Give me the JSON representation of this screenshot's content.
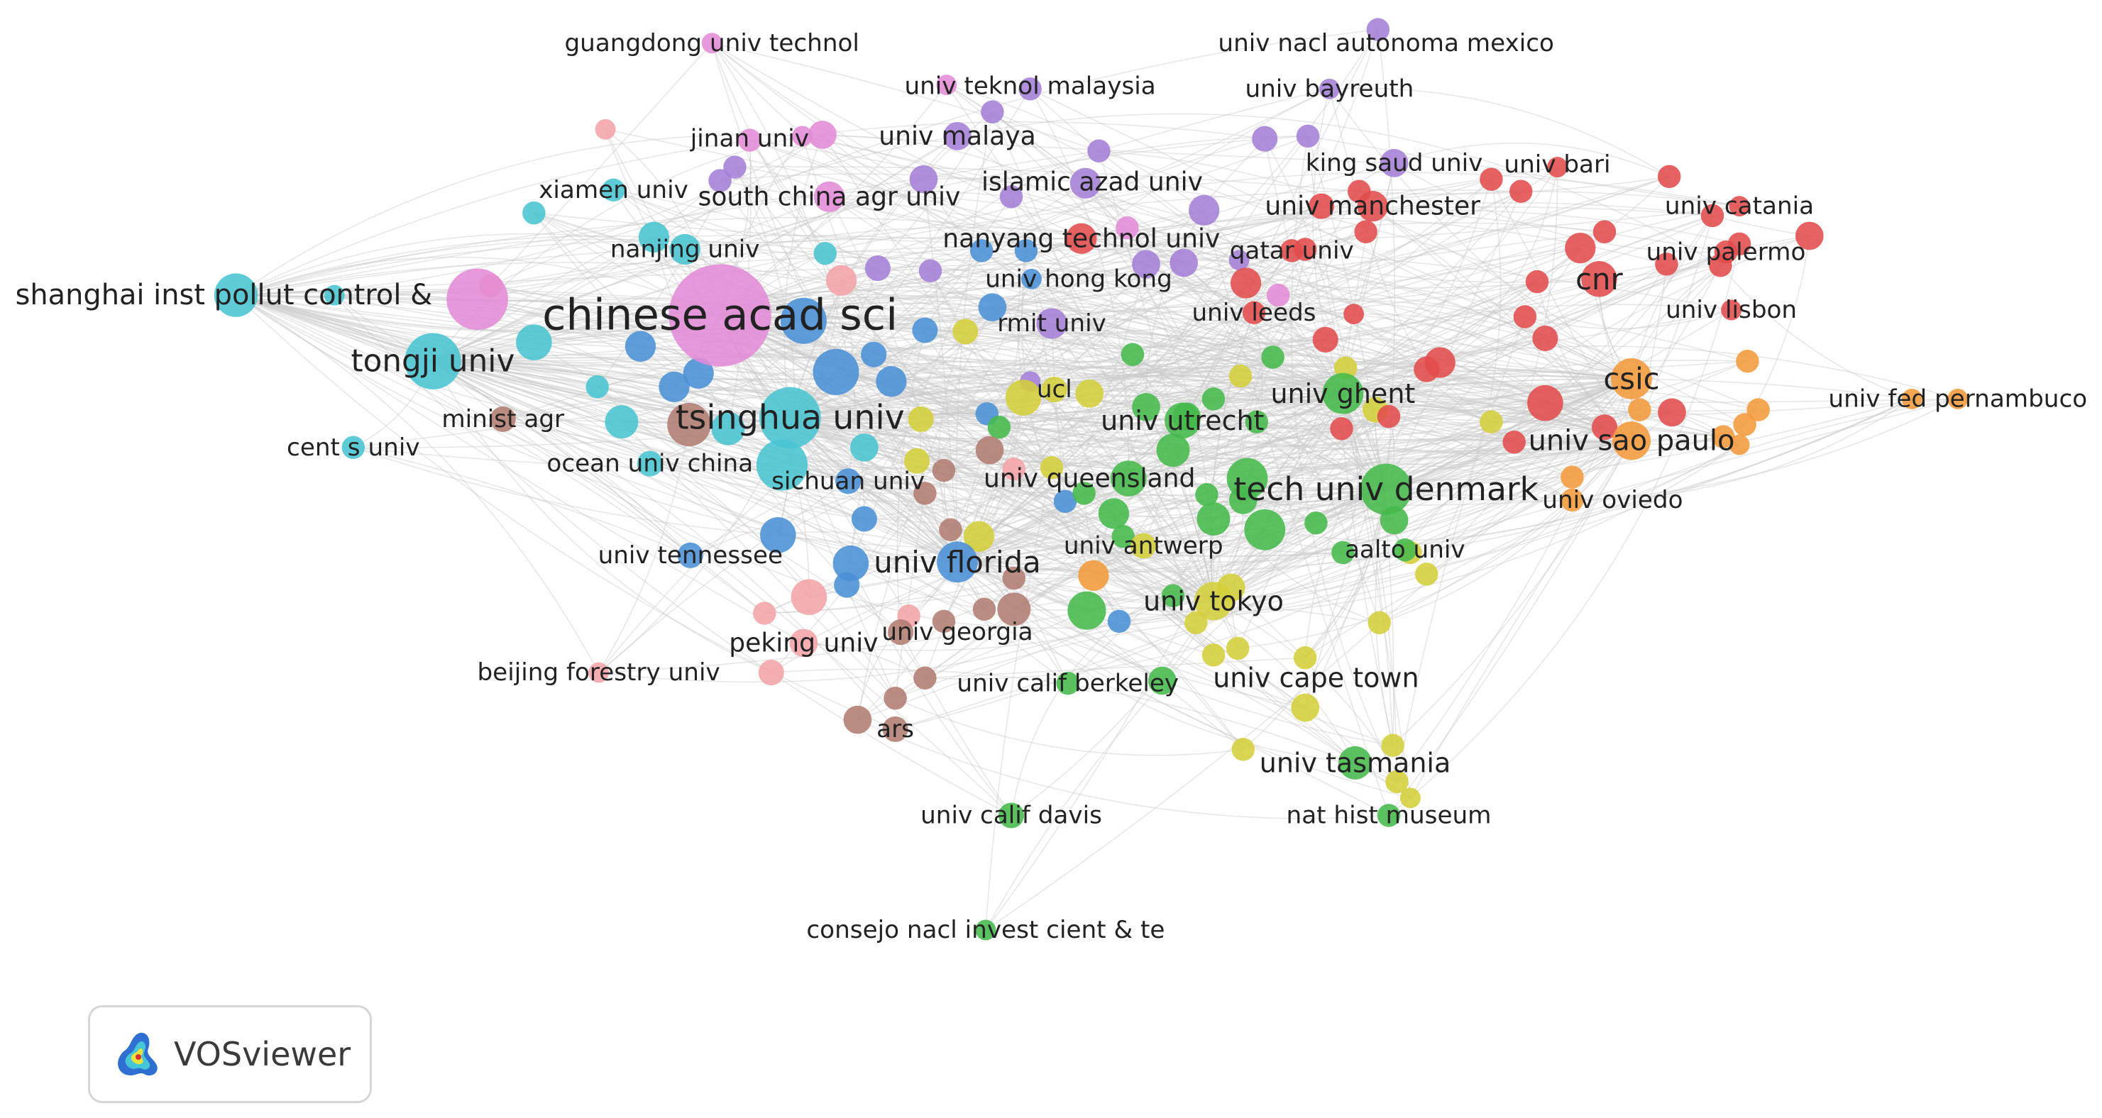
{
  "clusters": {
    "c1": "#e24b4b",
    "c2": "#46b94b",
    "c3": "#4a8fd6",
    "c4": "#d4cf3a",
    "c5": "#a47fd6",
    "c6": "#49c4d2",
    "c7": "#f29a3b",
    "c8": "#b07c71",
    "c9": "#e38bd6",
    "c10": "#f4a3a6"
  },
  "labels": [
    {
      "text": "guangdong univ technol",
      "cluster": "c9"
    },
    {
      "text": "univ nacl autonoma mexico",
      "cluster": "c5"
    },
    {
      "text": "univ teknol malaysia",
      "cluster": "c5"
    },
    {
      "text": "univ bayreuth",
      "cluster": "c5"
    },
    {
      "text": "jinan univ",
      "cluster": "c9"
    },
    {
      "text": "univ malaya",
      "cluster": "c5"
    },
    {
      "text": "king saud univ",
      "cluster": "c5"
    },
    {
      "text": "univ bari",
      "cluster": "c1"
    },
    {
      "text": "islamic azad univ",
      "cluster": "c5"
    },
    {
      "text": "xiamen univ",
      "cluster": "c6"
    },
    {
      "text": "south china agr univ",
      "cluster": "c9"
    },
    {
      "text": "univ manchester",
      "cluster": "c1"
    },
    {
      "text": "univ catania",
      "cluster": "c1"
    },
    {
      "text": "nanyang technol univ",
      "cluster": "c1"
    },
    {
      "text": "nanjing univ",
      "cluster": "c6"
    },
    {
      "text": "qatar univ",
      "cluster": "c1"
    },
    {
      "text": "univ palermo",
      "cluster": "c1"
    },
    {
      "text": "cnr",
      "cluster": "c1"
    },
    {
      "text": "univ hong kong",
      "cluster": "c3"
    },
    {
      "text": "shanghai inst pollut control &",
      "cluster": "c6"
    },
    {
      "text": "chinese acad sci",
      "cluster": "c9"
    },
    {
      "text": "univ leeds",
      "cluster": "c1"
    },
    {
      "text": "univ lisbon",
      "cluster": "c1"
    },
    {
      "text": "rmit univ",
      "cluster": "c5"
    },
    {
      "text": "tongji univ",
      "cluster": "c6"
    },
    {
      "text": "csic",
      "cluster": "c7"
    },
    {
      "text": "univ ghent",
      "cluster": "c2"
    },
    {
      "text": "univ fed pernambuco",
      "cluster": "c7"
    },
    {
      "text": "ucl",
      "cluster": "c4"
    },
    {
      "text": "minist agr",
      "cluster": "c8"
    },
    {
      "text": "tsinghua univ",
      "cluster": "c6"
    },
    {
      "text": "univ utrecht",
      "cluster": "c2"
    },
    {
      "text": "univ sao paulo",
      "cluster": "c7"
    },
    {
      "text": "cent s univ",
      "cluster": "c6"
    },
    {
      "text": "ocean univ china",
      "cluster": "c6"
    },
    {
      "text": "univ queensland",
      "cluster": "c2"
    },
    {
      "text": "sichuan univ",
      "cluster": "c3"
    },
    {
      "text": "tech univ denmark",
      "cluster": "c2"
    },
    {
      "text": "univ oviedo",
      "cluster": "c7"
    },
    {
      "text": "univ antwerp",
      "cluster": "c4"
    },
    {
      "text": "aalto univ",
      "cluster": "c2"
    },
    {
      "text": "univ tennessee",
      "cluster": "c3"
    },
    {
      "text": "univ florida",
      "cluster": "c3"
    },
    {
      "text": "univ tokyo",
      "cluster": "c4"
    },
    {
      "text": "univ georgia",
      "cluster": "c8"
    },
    {
      "text": "peking univ",
      "cluster": "c10"
    },
    {
      "text": "beijing forestry univ",
      "cluster": "c10"
    },
    {
      "text": "univ calif berkeley",
      "cluster": "c2"
    },
    {
      "text": "univ cape town",
      "cluster": "c4"
    },
    {
      "text": "ars",
      "cluster": "c8"
    },
    {
      "text": "univ tasmania",
      "cluster": "c2"
    },
    {
      "text": "univ calif davis",
      "cluster": "c2"
    },
    {
      "text": "nat hist museum",
      "cluster": "c2"
    },
    {
      "text": "consejo nacl invest cient & te",
      "cluster": "c2"
    }
  ],
  "badge": {
    "name": "VOSviewer",
    "icon": "vosviewer-logo-icon"
  }
}
